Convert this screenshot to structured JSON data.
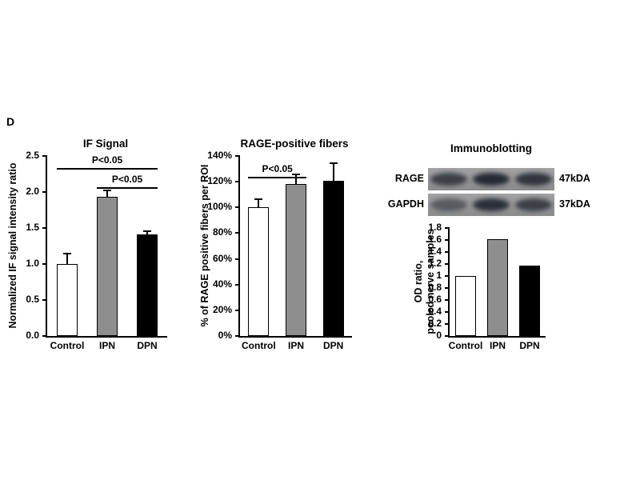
{
  "panel_label": "D",
  "colors": {
    "bars": [
      "#ffffff",
      "#8e8e8e",
      "#000000"
    ],
    "axis": "#000000",
    "background": "#ffffff"
  },
  "chart_data": [
    {
      "type": "bar",
      "title": "IF Signal",
      "ylabel": "Normalized IF signal intensity ratio",
      "categories": [
        "Control",
        "IPN",
        "DPN"
      ],
      "values": [
        1.0,
        1.93,
        1.41
      ],
      "errors": [
        0.13,
        0.08,
        0.03
      ],
      "ylim": [
        0,
        2.5
      ],
      "ytick_labels": [
        "0.0",
        "0.5",
        "1.0",
        "1.5",
        "2.0",
        "2.5"
      ],
      "annotations": [
        {
          "label": "P<0.05",
          "from": "Control",
          "to": "DPN",
          "line_y": 2.33
        },
        {
          "label": "P<0.05",
          "from": "IPN",
          "to": "DPN",
          "line_y": 2.07
        }
      ]
    },
    {
      "type": "bar",
      "title": "RAGE-positive fibers",
      "ylabel": "% of RAGE positive fibers per ROI",
      "categories": [
        "Control",
        "IPN",
        "DPN"
      ],
      "values": [
        100,
        118,
        121
      ],
      "errors": [
        6,
        7,
        13
      ],
      "ylim": [
        0,
        140
      ],
      "ytick_labels": [
        "0%",
        "20%",
        "40%",
        "60%",
        "80%",
        "100%",
        "120%",
        "140%"
      ],
      "annotations": [
        {
          "label": "P<0.05",
          "from": "Control",
          "to": "IPN",
          "line_y": 124
        }
      ]
    },
    {
      "type": "bar",
      "title": "Immunoblotting",
      "ylabel": "OD ratio,\npooled nerve samples",
      "categories": [
        "Control",
        "IPN",
        "DPN"
      ],
      "values": [
        1.0,
        1.62,
        1.17
      ],
      "ylim": [
        0,
        1.8
      ],
      "ytick_labels": [
        "0",
        "0.2",
        "0.4",
        "0.6",
        "0.8",
        "1",
        "1.2",
        "1.4",
        "1.6",
        "1.8"
      ],
      "blot_rows": [
        {
          "label": "RAGE",
          "weight": "47kDA",
          "lanes": [
            0.8,
            1.0,
            0.9
          ]
        },
        {
          "label": "GAPDH",
          "weight": "37kDA",
          "lanes": [
            0.55,
            0.95,
            0.8
          ]
        }
      ]
    }
  ]
}
